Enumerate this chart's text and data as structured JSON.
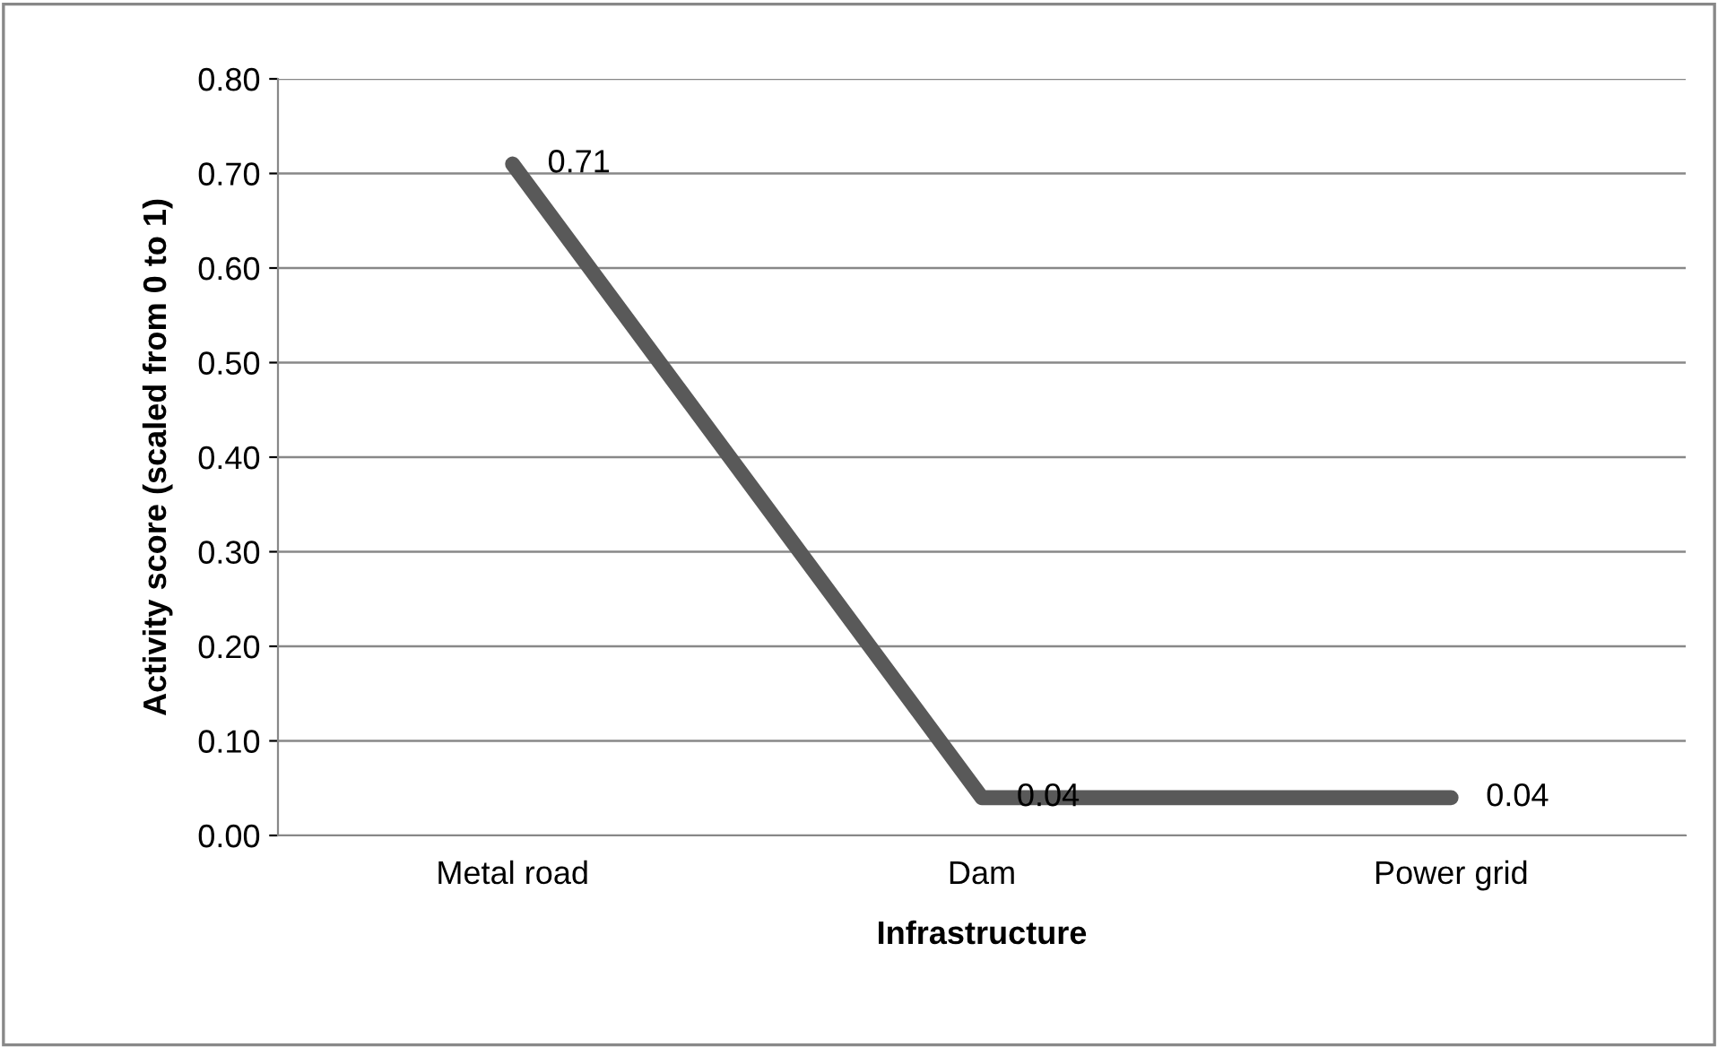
{
  "chart_data": {
    "type": "line",
    "xlabel": "Infrastructure",
    "ylabel": "Activity score (scaled from 0 to 1)",
    "categories": [
      "Metal road",
      "Dam",
      "Power grid"
    ],
    "series": [
      {
        "color": "#595959",
        "values": [
          0.71,
          0.04,
          0.04
        ]
      }
    ],
    "ylim": [
      0,
      0.8
    ],
    "yticks": [
      {
        "value": 0,
        "label": "0.00"
      },
      {
        "value": 0.1,
        "label": "0.10"
      },
      {
        "value": 0.2,
        "label": "0.20"
      },
      {
        "value": 0.3,
        "label": "0.30"
      },
      {
        "value": 0.4,
        "label": "0.40"
      },
      {
        "value": 0.5,
        "label": "0.50"
      },
      {
        "value": 0.6,
        "label": "0.60"
      },
      {
        "value": 0.7,
        "label": "0.70"
      },
      {
        "value": 0.8,
        "label": "0.80"
      }
    ],
    "grid": "y",
    "data_labels": true,
    "marker": "none",
    "line_style": "solid",
    "legend": false
  }
}
